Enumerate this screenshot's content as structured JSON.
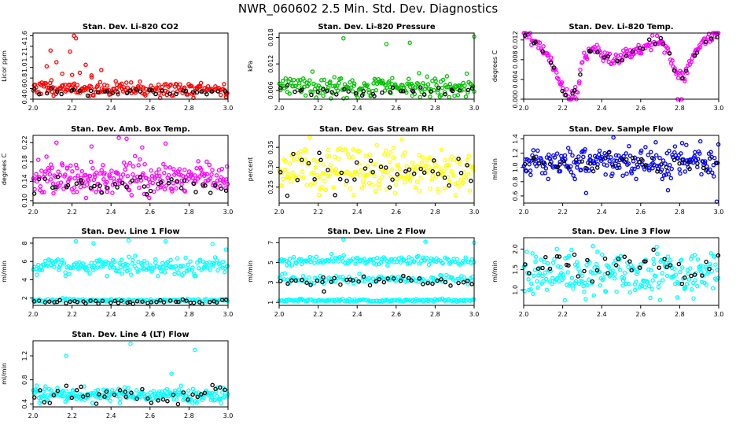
{
  "figure": {
    "title": "NWR_060602  2.5 Min. Std. Dev. Diagnostics"
  },
  "colors": {
    "red": "#ff0000",
    "green": "#00c000",
    "magenta": "#ff00ff",
    "yellow": "#ffff00",
    "blue": "#0000ff",
    "cyan": "#00ffff",
    "black": "#000000"
  },
  "chart_data": [
    {
      "type": "scatter",
      "title": "Stan. Dev. Li-820 CO2",
      "ylabel": "Licor ppm",
      "xlim": [
        2.0,
        3.0
      ],
      "ylim": [
        0.4,
        1.65
      ],
      "xticks": [
        "2.0",
        "2.2",
        "2.4",
        "2.6",
        "2.8",
        "3.0"
      ],
      "xtick_values": [
        2.0,
        2.2,
        2.4,
        2.6,
        2.8,
        3.0
      ],
      "yticks": [
        "0.4",
        "0.6",
        "0.8",
        "1.0",
        "1.2",
        "1.4",
        "1.6"
      ],
      "ytick_values": [
        0.4,
        0.6,
        0.8,
        1.0,
        1.2,
        1.4,
        1.6
      ],
      "series": [
        {
          "name": "main",
          "color": "#ff0000",
          "n": 200,
          "base": 0.58,
          "spread": 0.07,
          "seed": 11,
          "decay": 0.1
        },
        {
          "name": "reference",
          "color": "#000000",
          "n": 35,
          "base": 0.54,
          "spread": 0.04,
          "seed": 12
        }
      ],
      "outliers": [
        {
          "x": 2.21,
          "y": 1.6,
          "color": "#ff0000"
        },
        {
          "x": 2.22,
          "y": 1.55,
          "color": "#ff0000"
        },
        {
          "x": 2.09,
          "y": 1.32,
          "color": "#ff0000"
        },
        {
          "x": 2.19,
          "y": 1.3,
          "color": "#ff0000"
        },
        {
          "x": 2.27,
          "y": 1.05,
          "color": "#ff0000"
        },
        {
          "x": 2.12,
          "y": 1.1,
          "color": "#ff0000"
        },
        {
          "x": 2.35,
          "y": 0.95,
          "color": "#ff0000"
        },
        {
          "x": 2.07,
          "y": 1.02,
          "color": "#ff0000"
        },
        {
          "x": 2.24,
          "y": 0.9,
          "color": "#ff0000"
        },
        {
          "x": 2.3,
          "y": 0.85,
          "color": "#ff0000"
        },
        {
          "x": 2.15,
          "y": 0.88,
          "color": "#ff0000"
        },
        {
          "x": 2.99,
          "y": 0.44,
          "color": "#ff0000"
        }
      ]
    },
    {
      "type": "scatter",
      "title": "Stan. Dev. Li-820 Pressure",
      "ylabel": "kPa",
      "xlim": [
        2.0,
        3.0
      ],
      "ylim": [
        0.004,
        0.019
      ],
      "xticks": [
        "2.0",
        "2.2",
        "2.4",
        "2.6",
        "2.8",
        "3.0"
      ],
      "xtick_values": [
        2.0,
        2.2,
        2.4,
        2.6,
        2.8,
        3.0
      ],
      "yticks": [
        "0.006",
        "0.012",
        "0.018"
      ],
      "ytick_values": [
        0.006,
        0.012,
        0.018
      ],
      "series": [
        {
          "name": "main",
          "color": "#00c000",
          "n": 200,
          "base": 0.0068,
          "spread": 0.0012,
          "seed": 21
        },
        {
          "name": "reference",
          "color": "#000000",
          "n": 35,
          "base": 0.0058,
          "spread": 0.0006,
          "seed": 22
        }
      ],
      "outliers": [
        {
          "x": 2.33,
          "y": 0.0178,
          "color": "#00c000"
        },
        {
          "x": 2.55,
          "y": 0.0165,
          "color": "#00c000"
        },
        {
          "x": 2.67,
          "y": 0.0168,
          "color": "#00c000"
        },
        {
          "x": 3.0,
          "y": 0.0182,
          "color": "#00c000"
        }
      ]
    },
    {
      "type": "scatter",
      "title": "Stan. Dev. Li-820 Temp.",
      "ylabel": "degrees C",
      "xlim": [
        2.0,
        3.0
      ],
      "ylim": [
        0.0,
        0.0134
      ],
      "xticks": [
        "2.0",
        "2.2",
        "2.4",
        "2.6",
        "2.8",
        "3.0"
      ],
      "xtick_values": [
        2.0,
        2.2,
        2.4,
        2.6,
        2.8,
        3.0
      ],
      "yticks": [
        "0.000",
        "0.004",
        "0.008",
        "0.012"
      ],
      "ytick_values": [
        0.0,
        0.004,
        0.008,
        0.012
      ],
      "series": [
        {
          "name": "main",
          "color": "#ff00ff",
          "n": 200,
          "spread": 0.0006,
          "seed": 31,
          "curve": [
            [
              2.0,
              0.0132
            ],
            [
              2.08,
              0.011
            ],
            [
              2.13,
              0.0085
            ],
            [
              2.18,
              0.004
            ],
            [
              2.23,
              0.0
            ],
            [
              2.28,
              0.002
            ],
            [
              2.3,
              0.008
            ],
            [
              2.36,
              0.0105
            ],
            [
              2.42,
              0.0087
            ],
            [
              2.48,
              0.0078
            ],
            [
              2.52,
              0.0088
            ],
            [
              2.58,
              0.0098
            ],
            [
              2.62,
              0.0105
            ],
            [
              2.66,
              0.0115
            ],
            [
              2.7,
              0.012
            ],
            [
              2.74,
              0.0102
            ],
            [
              2.78,
              0.0055
            ],
            [
              2.82,
              0.0045
            ],
            [
              2.86,
              0.008
            ],
            [
              2.9,
              0.0105
            ],
            [
              2.96,
              0.0125
            ],
            [
              3.0,
              0.0132
            ]
          ]
        },
        {
          "name": "reference",
          "color": "#000000",
          "n": 35,
          "spread": 0.0005,
          "seed": 32,
          "curve": [
            [
              2.0,
              0.0132
            ],
            [
              2.08,
              0.011
            ],
            [
              2.13,
              0.0085
            ],
            [
              2.18,
              0.004
            ],
            [
              2.23,
              0.0
            ],
            [
              2.28,
              0.002
            ],
            [
              2.3,
              0.008
            ],
            [
              2.36,
              0.0105
            ],
            [
              2.42,
              0.0087
            ],
            [
              2.48,
              0.0078
            ],
            [
              2.52,
              0.0088
            ],
            [
              2.58,
              0.0098
            ],
            [
              2.62,
              0.0105
            ],
            [
              2.66,
              0.0115
            ],
            [
              2.7,
              0.012
            ],
            [
              2.74,
              0.0102
            ],
            [
              2.78,
              0.0055
            ],
            [
              2.82,
              0.0045
            ],
            [
              2.86,
              0.008
            ],
            [
              2.9,
              0.0105
            ],
            [
              2.96,
              0.0125
            ],
            [
              3.0,
              0.0132
            ]
          ]
        }
      ],
      "outliers": [
        {
          "x": 2.24,
          "y": 0.0,
          "color": "#ff00ff"
        },
        {
          "x": 2.27,
          "y": 0.0,
          "color": "#ff00ff"
        },
        {
          "x": 2.79,
          "y": 0.0,
          "color": "#ff00ff"
        },
        {
          "x": 2.81,
          "y": 0.0,
          "color": "#ff00ff"
        }
      ]
    },
    {
      "type": "scatter",
      "title": "Stan. Dev. Amb. Box Temp.",
      "ylabel": "degrees C",
      "xlim": [
        2.0,
        3.0
      ],
      "ylim": [
        0.095,
        0.235
      ],
      "xticks": [
        "2.0",
        "2.2",
        "2.4",
        "2.6",
        "2.8",
        "3.0"
      ],
      "xtick_values": [
        2.0,
        2.2,
        2.4,
        2.6,
        2.8,
        3.0
      ],
      "yticks": [
        "0.10",
        "0.14",
        "0.18",
        "0.22"
      ],
      "ytick_values": [
        0.1,
        0.14,
        0.18,
        0.22
      ],
      "series": [
        {
          "name": "main",
          "color": "#ff00ff",
          "n": 240,
          "base": 0.145,
          "spread": 0.018,
          "seed": 41
        },
        {
          "name": "reference",
          "color": "#000000",
          "n": 40,
          "base": 0.132,
          "spread": 0.009,
          "seed": 42
        }
      ],
      "outliers": [
        {
          "x": 2.44,
          "y": 0.23,
          "color": "#ff00ff"
        },
        {
          "x": 2.48,
          "y": 0.228,
          "color": "#ff00ff"
        },
        {
          "x": 2.68,
          "y": 0.218,
          "color": "#ff00ff"
        },
        {
          "x": 2.12,
          "y": 0.22,
          "color": "#ff00ff"
        },
        {
          "x": 2.3,
          "y": 0.212,
          "color": "#ff00ff"
        },
        {
          "x": 2.56,
          "y": 0.21,
          "color": "#ff00ff"
        }
      ]
    },
    {
      "type": "scatter",
      "title": "Stan. Dev. Gas Stream RH",
      "ylabel": "percent",
      "xlim": [
        2.0,
        3.0
      ],
      "ylim": [
        0.21,
        0.38
      ],
      "xticks": [
        "2.0",
        "2.2",
        "2.4",
        "2.6",
        "2.8",
        "3.0"
      ],
      "xtick_values": [
        2.0,
        2.2,
        2.4,
        2.6,
        2.8,
        3.0
      ],
      "yticks": [
        "0.25",
        "0.30",
        "0.35"
      ],
      "ytick_values": [
        0.25,
        0.3,
        0.35
      ],
      "series": [
        {
          "name": "main",
          "color": "#ffff00",
          "n": 220,
          "base": 0.292,
          "spread": 0.028,
          "seed": 51
        },
        {
          "name": "reference",
          "color": "#000000",
          "n": 38,
          "base": 0.29,
          "spread": 0.028,
          "seed": 52
        }
      ],
      "outliers": []
    },
    {
      "type": "scatter",
      "title": "Stan. Dev. Sample Flow",
      "ylabel": "ml/min",
      "xlim": [
        2.0,
        3.0
      ],
      "ylim": [
        0.5,
        1.45
      ],
      "xticks": [
        "2.0",
        "2.2",
        "2.4",
        "2.6",
        "2.8",
        "3.0"
      ],
      "xtick_values": [
        2.0,
        2.2,
        2.4,
        2.6,
        2.8,
        3.0
      ],
      "yticks": [
        "0.6",
        "0.8",
        "1.0",
        "1.2",
        "1.4"
      ],
      "ytick_values": [
        0.6,
        0.8,
        1.0,
        1.2,
        1.4
      ],
      "series": [
        {
          "name": "main",
          "color": "#0000ff",
          "n": 230,
          "base": 1.08,
          "spread": 0.11,
          "seed": 61
        },
        {
          "name": "reference",
          "color": "#000000",
          "n": 40,
          "base": 1.05,
          "spread": 0.07,
          "seed": 62
        }
      ],
      "outliers": [
        {
          "x": 2.99,
          "y": 0.52,
          "color": "#0000ff"
        },
        {
          "x": 2.32,
          "y": 0.64,
          "color": "#0000ff"
        },
        {
          "x": 2.46,
          "y": 1.42,
          "color": "#0000ff"
        },
        {
          "x": 2.74,
          "y": 0.68,
          "color": "#0000ff"
        }
      ]
    },
    {
      "type": "scatter",
      "title": "Stan. Dev. Line 1 Flow",
      "ylabel": "ml/min",
      "xlim": [
        2.0,
        3.0
      ],
      "ylim": [
        1.2,
        8.6
      ],
      "xticks": [
        "2.0",
        "2.2",
        "2.4",
        "2.6",
        "2.8",
        "3.0"
      ],
      "xtick_values": [
        2.0,
        2.2,
        2.4,
        2.6,
        2.8,
        3.0
      ],
      "yticks": [
        "2",
        "4",
        "6",
        "8"
      ],
      "ytick_values": [
        2,
        4,
        6,
        8
      ],
      "series": [
        {
          "name": "main-upper",
          "color": "#00ffff",
          "n": 180,
          "base": 5.5,
          "spread": 0.5,
          "seed": 71
        },
        {
          "name": "main-lower",
          "color": "#00ffff",
          "n": 110,
          "base": 1.75,
          "spread": 0.08,
          "seed": 72
        },
        {
          "name": "reference",
          "color": "#000000",
          "n": 45,
          "base": 1.62,
          "spread": 0.12,
          "seed": 73
        }
      ],
      "outliers": [
        {
          "x": 2.22,
          "y": 8.2,
          "color": "#00ffff"
        },
        {
          "x": 2.49,
          "y": 8.3,
          "color": "#00ffff"
        },
        {
          "x": 2.68,
          "y": 8.2,
          "color": "#00ffff"
        },
        {
          "x": 2.31,
          "y": 8.0,
          "color": "#00ffff"
        },
        {
          "x": 2.92,
          "y": 7.9,
          "color": "#00ffff"
        },
        {
          "x": 2.99,
          "y": 7.3,
          "color": "#00ffff"
        }
      ]
    },
    {
      "type": "scatter",
      "title": "Stan. Dev. Line 2 Flow",
      "ylabel": "ml/min",
      "xlim": [
        2.0,
        3.0
      ],
      "ylim": [
        0.7,
        7.5
      ],
      "xticks": [
        "2.0",
        "2.2",
        "2.4",
        "2.6",
        "2.8",
        "3.0"
      ],
      "xtick_values": [
        2.0,
        2.2,
        2.4,
        2.6,
        2.8,
        3.0
      ],
      "yticks": [
        "1",
        "3",
        "5",
        "7"
      ],
      "ytick_values": [
        1,
        3,
        5,
        7
      ],
      "series": [
        {
          "name": "main-upper",
          "color": "#00ffff",
          "n": 130,
          "base": 5.2,
          "spread": 0.22,
          "seed": 81
        },
        {
          "name": "main-middle",
          "color": "#00ffff",
          "n": 110,
          "base": 3.3,
          "spread": 0.22,
          "seed": 82
        },
        {
          "name": "main-lower",
          "color": "#00ffff",
          "n": 130,
          "base": 1.2,
          "spread": 0.06,
          "seed": 83
        },
        {
          "name": "reference",
          "color": "#000000",
          "n": 40,
          "base": 3.2,
          "spread": 0.25,
          "seed": 84
        }
      ],
      "outliers": [
        {
          "x": 2.33,
          "y": 7.3,
          "color": "#00ffff"
        },
        {
          "x": 2.75,
          "y": 7.1,
          "color": "#00ffff"
        },
        {
          "x": 3.0,
          "y": 7.0,
          "color": "#00ffff"
        },
        {
          "x": 2.23,
          "y": 2.1,
          "color": "#000000"
        }
      ]
    },
    {
      "type": "scatter",
      "title": "Stan. Dev. Line 3 Flow",
      "ylabel": "ml/min",
      "xlim": [
        2.0,
        3.0
      ],
      "ylim": [
        0.62,
        2.28
      ],
      "xticks": [
        "2.0",
        "2.2",
        "2.4",
        "2.6",
        "2.8",
        "3.0"
      ],
      "xtick_values": [
        2.0,
        2.2,
        2.4,
        2.6,
        2.8,
        3.0
      ],
      "yticks": [
        "1.0",
        "1.5",
        "2.0"
      ],
      "ytick_values": [
        1.0,
        1.5,
        2.0
      ],
      "series": [
        {
          "name": "main",
          "color": "#00ffff",
          "n": 240,
          "base": 1.35,
          "spread": 0.28,
          "seed": 91
        },
        {
          "name": "reference",
          "color": "#000000",
          "n": 40,
          "base": 1.55,
          "spread": 0.2,
          "seed": 92
        }
      ],
      "outliers": []
    },
    {
      "type": "scatter",
      "title": "Stan. Dev. Line 4 (LT) Flow",
      "ylabel": "ml/min",
      "xlim": [
        2.0,
        3.0
      ],
      "ylim": [
        0.35,
        1.45
      ],
      "xticks": [
        "2.0",
        "2.2",
        "2.4",
        "2.6",
        "2.8",
        "3.0"
      ],
      "xtick_values": [
        2.0,
        2.2,
        2.4,
        2.6,
        2.8,
        3.0
      ],
      "yticks": [
        "0.4",
        "0.8",
        "1.2"
      ],
      "ytick_values": [
        0.4,
        0.8,
        1.2
      ],
      "series": [
        {
          "name": "main",
          "color": "#00ffff",
          "n": 220,
          "base": 0.55,
          "spread": 0.06,
          "seed": 101
        },
        {
          "name": "reference",
          "color": "#000000",
          "n": 40,
          "base": 0.55,
          "spread": 0.07,
          "seed": 102
        }
      ],
      "outliers": [
        {
          "x": 2.5,
          "y": 1.4,
          "color": "#00ffff"
        },
        {
          "x": 2.17,
          "y": 1.2,
          "color": "#00ffff"
        },
        {
          "x": 2.83,
          "y": 1.3,
          "color": "#00ffff"
        },
        {
          "x": 2.71,
          "y": 0.9,
          "color": "#00ffff"
        }
      ]
    }
  ]
}
